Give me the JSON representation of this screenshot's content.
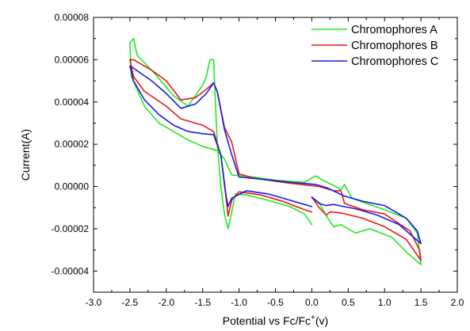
{
  "chart_data": {
    "type": "line",
    "xlabel": "Potential vs Fc/Fc",
    "xlabel_sup": "+",
    "xlabel_tail": "(v)",
    "ylabel": "Current(A)",
    "xlim": [
      -3.0,
      2.0
    ],
    "ylim": [
      -5e-05,
      8e-05
    ],
    "grid": false,
    "legend_position": "top-right",
    "x_ticks": [
      -3.0,
      -2.5,
      -2.0,
      -1.5,
      -1.0,
      -0.5,
      0.0,
      0.5,
      1.0,
      1.5,
      2.0
    ],
    "x_tick_labels": [
      "-3.0",
      "-2.5",
      "-2.0",
      "-1.5",
      "-1.0",
      "-0.5",
      "0.0",
      "0.5",
      "1.0",
      "1.5",
      "2.0"
    ],
    "y_ticks": [
      -4e-05,
      -2e-05,
      0.0,
      2e-05,
      4e-05,
      6e-05,
      8e-05
    ],
    "y_tick_labels": [
      "-0.00004",
      "-0.00002",
      "0.00000",
      "0.00002",
      "0.00004",
      "0.00006",
      "0.00008"
    ],
    "series": [
      {
        "name": "Chromophores A",
        "color": "#22e822",
        "points": [
          [
            0.0,
            -1.8e-05
          ],
          [
            -0.1,
            -1.3e-05
          ],
          [
            -0.3,
            -9.5e-06
          ],
          [
            -0.6,
            -6.5e-06
          ],
          [
            -0.9,
            -4e-06
          ],
          [
            -1.05,
            -3.5e-06
          ],
          [
            -1.1,
            -1.2e-05
          ],
          [
            -1.15,
            -2e-05
          ],
          [
            -1.2,
            -1.3e-05
          ],
          [
            -1.25,
            0.0
          ],
          [
            -1.3,
            2e-05
          ],
          [
            -1.35,
            6e-05
          ],
          [
            -1.4,
            6e-05
          ],
          [
            -1.45,
            5.2e-05
          ],
          [
            -1.5,
            4.8e-05
          ],
          [
            -1.7,
            3.8e-05
          ],
          [
            -1.9,
            4.3e-05
          ],
          [
            -2.2,
            5.5e-05
          ],
          [
            -2.4,
            6.2e-05
          ],
          [
            -2.45,
            7e-05
          ],
          [
            -2.5,
            6.8e-05
          ],
          [
            -2.48,
            5.2e-05
          ],
          [
            -2.3,
            3.8e-05
          ],
          [
            -2.1,
            3e-05
          ],
          [
            -1.9,
            2.6e-05
          ],
          [
            -1.7,
            2.2e-05
          ],
          [
            -1.5,
            1.9e-05
          ],
          [
            -1.3,
            1.7e-05
          ],
          [
            -1.2,
            1.3e-05
          ],
          [
            -1.1,
            5.5e-06
          ],
          [
            -0.8,
            4.5e-06
          ],
          [
            -0.5,
            3e-06
          ],
          [
            -0.1,
            2e-06
          ],
          [
            0.05,
            5e-06
          ],
          [
            0.15,
            3e-06
          ],
          [
            0.3,
            5e-07
          ],
          [
            0.4,
            -1.5e-06
          ],
          [
            0.45,
            1e-06
          ],
          [
            0.55,
            -5.5e-06
          ],
          [
            0.75,
            -8e-06
          ],
          [
            1.0,
            -1.1e-05
          ],
          [
            1.3,
            -1.5e-05
          ],
          [
            1.45,
            -2.2e-05
          ],
          [
            1.5,
            -3.7e-05
          ],
          [
            1.3,
            -3.1e-05
          ],
          [
            1.1,
            -2.4e-05
          ],
          [
            0.8,
            -2e-05
          ],
          [
            0.6,
            -2.2e-05
          ],
          [
            0.4,
            -1.8e-05
          ],
          [
            0.3,
            -1.9e-05
          ],
          [
            0.2,
            -1.4e-05
          ],
          [
            0.1,
            -7.5e-06
          ],
          [
            0.0,
            -5e-06
          ]
        ]
      },
      {
        "name": "Chromophores B",
        "color": "#e81818",
        "points": [
          [
            0.0,
            -5e-06
          ],
          [
            0.1,
            -1e-05
          ],
          [
            0.2,
            -1.35e-05
          ],
          [
            0.25,
            -1.2e-05
          ],
          [
            0.4,
            -1.25e-05
          ],
          [
            0.7,
            -1.5e-05
          ],
          [
            1.0,
            -1.9e-05
          ],
          [
            1.3,
            -2.5e-05
          ],
          [
            1.5,
            -3.5e-05
          ],
          [
            1.48,
            -3e-05
          ],
          [
            1.35,
            -2.1e-05
          ],
          [
            1.0,
            -1.3e-05
          ],
          [
            0.7,
            -1.1e-05
          ],
          [
            0.45,
            -8e-06
          ],
          [
            0.4,
            -2e-06
          ],
          [
            0.3,
            -2e-06
          ],
          [
            0.1,
            0.0
          ],
          [
            -0.3,
            1.5e-06
          ],
          [
            -0.8,
            4e-06
          ],
          [
            -1.0,
            6e-06
          ],
          [
            -1.1,
            2.1e-05
          ],
          [
            -1.2,
            2.8e-05
          ],
          [
            -1.3,
            4.5e-05
          ],
          [
            -1.35,
            4.9e-05
          ],
          [
            -1.45,
            4.6e-05
          ],
          [
            -1.6,
            4.2e-05
          ],
          [
            -1.8,
            4.1e-05
          ],
          [
            -2.0,
            5e-05
          ],
          [
            -2.2,
            5.5e-05
          ],
          [
            -2.45,
            6e-05
          ],
          [
            -2.5,
            6e-05
          ],
          [
            -2.45,
            5.2e-05
          ],
          [
            -2.3,
            4.5e-05
          ],
          [
            -2.0,
            3.8e-05
          ],
          [
            -1.8,
            3.2e-05
          ],
          [
            -1.6,
            3e-05
          ],
          [
            -1.5,
            2.9e-05
          ],
          [
            -1.35,
            2.6e-05
          ],
          [
            -1.25,
            1.5e-05
          ],
          [
            -1.18,
            -5e-06
          ],
          [
            -1.15,
            -1.4e-05
          ],
          [
            -1.1,
            -6.5e-06
          ],
          [
            -1.0,
            -2.5e-06
          ],
          [
            -0.7,
            -4e-06
          ],
          [
            -0.4,
            -7e-06
          ],
          [
            -0.1,
            -1.1e-05
          ],
          [
            0.0,
            -1.2e-05
          ]
        ]
      },
      {
        "name": "Chromophores C",
        "color": "#1a1ae6",
        "points": [
          [
            0.0,
            -5e-06
          ],
          [
            0.1,
            -8e-06
          ],
          [
            0.2,
            -9e-06
          ],
          [
            0.3,
            -8.5e-06
          ],
          [
            0.4,
            -9.2e-06
          ],
          [
            0.6,
            -1.05e-05
          ],
          [
            0.9,
            -1.35e-05
          ],
          [
            1.2,
            -1.8e-05
          ],
          [
            1.4,
            -2.4e-05
          ],
          [
            1.5,
            -2.7e-05
          ],
          [
            1.45,
            -2.1e-05
          ],
          [
            1.3,
            -1.5e-05
          ],
          [
            1.0,
            -9e-06
          ],
          [
            0.7,
            -7e-06
          ],
          [
            0.45,
            -4.5e-06
          ],
          [
            0.2,
            -5e-07
          ],
          [
            0.05,
            1e-06
          ],
          [
            -0.3,
            2e-06
          ],
          [
            -0.7,
            3.5e-06
          ],
          [
            -1.0,
            4.5e-06
          ],
          [
            -1.1,
            1.5e-05
          ],
          [
            -1.2,
            2.7e-05
          ],
          [
            -1.3,
            4.5e-05
          ],
          [
            -1.35,
            4.9e-05
          ],
          [
            -1.45,
            4.4e-05
          ],
          [
            -1.6,
            3.9e-05
          ],
          [
            -1.8,
            3.7e-05
          ],
          [
            -2.0,
            4.4e-05
          ],
          [
            -2.2,
            5e-05
          ],
          [
            -2.45,
            5.6e-05
          ],
          [
            -2.5,
            5.7e-05
          ],
          [
            -2.45,
            5e-05
          ],
          [
            -2.3,
            4.1e-05
          ],
          [
            -2.1,
            3.4e-05
          ],
          [
            -1.9,
            2.9e-05
          ],
          [
            -1.7,
            2.6e-05
          ],
          [
            -1.5,
            2.5e-05
          ],
          [
            -1.35,
            2.45e-05
          ],
          [
            -1.25,
            1.5e-05
          ],
          [
            -1.18,
            -4e-06
          ],
          [
            -1.15,
            -9.5e-06
          ],
          [
            -1.1,
            -5.5e-06
          ],
          [
            -0.9,
            -2e-06
          ],
          [
            -0.6,
            -3.5e-06
          ],
          [
            -0.3,
            -6.5e-06
          ],
          [
            -0.1,
            -8.5e-06
          ],
          [
            0.0,
            -9.5e-06
          ]
        ]
      }
    ]
  }
}
